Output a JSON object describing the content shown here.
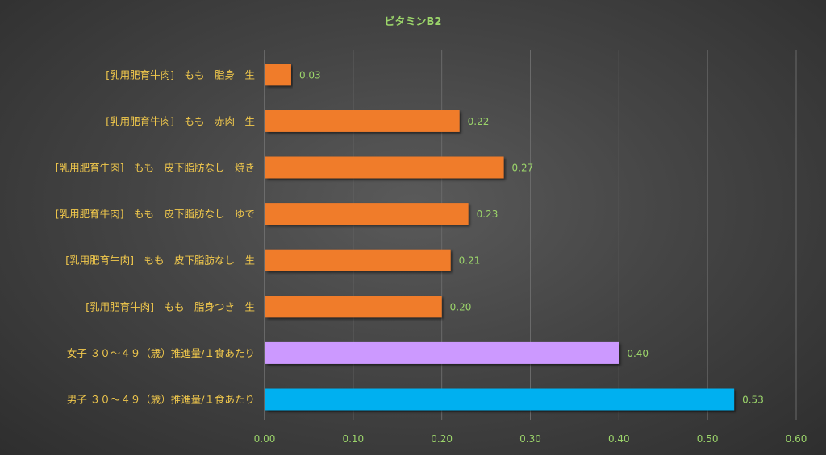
{
  "chart_data": {
    "type": "bar",
    "orientation": "horizontal",
    "title": "ビタミンB2",
    "xlim": [
      0,
      0.6
    ],
    "ticks": [
      "0.00",
      "0.10",
      "0.20",
      "0.30",
      "0.40",
      "0.50",
      "0.60"
    ],
    "grid": true,
    "categories": [
      "[乳用肥育牛肉]　もも　脂身　生",
      "[乳用肥育牛肉]　もも　赤肉　生",
      "[乳用肥育牛肉]　もも　皮下脂肪なし　焼き",
      "[乳用肥育牛肉]　もも　皮下脂肪なし　ゆで",
      "[乳用肥育牛肉]　もも　皮下脂肪なし　生",
      "[乳用肥育牛肉]　もも　脂身つき　生",
      "女子 ３０～４９（歳）推進量/１食あたり",
      "男子 ３０～４９（歳）推進量/１食あたり"
    ],
    "values": [
      0.03,
      0.22,
      0.27,
      0.23,
      0.21,
      0.2,
      0.4,
      0.53
    ],
    "value_labels": [
      "0.03",
      "0.22",
      "0.27",
      "0.23",
      "0.21",
      "0.20",
      "0.40",
      "0.53"
    ],
    "colors": [
      "#f07b2c",
      "#f07b2c",
      "#f07b2c",
      "#f07b2c",
      "#f07b2c",
      "#f07b2c",
      "#cc99ff",
      "#00b0f0"
    ]
  }
}
